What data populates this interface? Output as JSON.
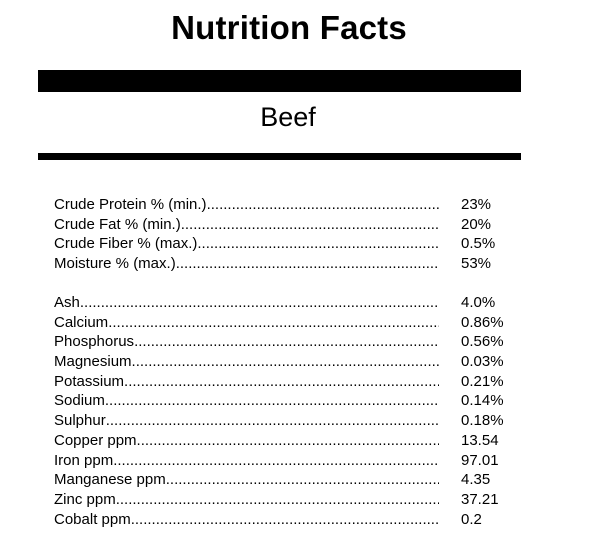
{
  "title": "Nutrition Facts",
  "product": "Beef",
  "guaranteed_analysis": [
    {
      "label": "Crude Protein % (min.)",
      "value": "23%"
    },
    {
      "label": "Crude Fat % (min.)",
      "value": "20%"
    },
    {
      "label": "Crude Fiber % (max.)",
      "value": "0.5%"
    },
    {
      "label": "Moisture % (max.)",
      "value": "53%"
    }
  ],
  "minerals": [
    {
      "label": "Ash",
      "value": "4.0%"
    },
    {
      "label": "Calcium",
      "value": "0.86%"
    },
    {
      "label": "Phosphorus",
      "value": "0.56%"
    },
    {
      "label": "Magnesium",
      "value": "0.03%"
    },
    {
      "label": "Potassium",
      "value": "0.21%"
    },
    {
      "label": "Sodium",
      "value": "0.14%"
    },
    {
      "label": "Sulphur",
      "value": "0.18%"
    },
    {
      "label": "Copper ppm",
      "value": "13.54"
    },
    {
      "label": "Iron ppm",
      "value": "97.01"
    },
    {
      "label": "Manganese ppm",
      "value": "4.35"
    },
    {
      "label": "Zinc ppm",
      "value": "37.21"
    },
    {
      "label": "Cobalt ppm",
      "value": "0.2"
    }
  ]
}
